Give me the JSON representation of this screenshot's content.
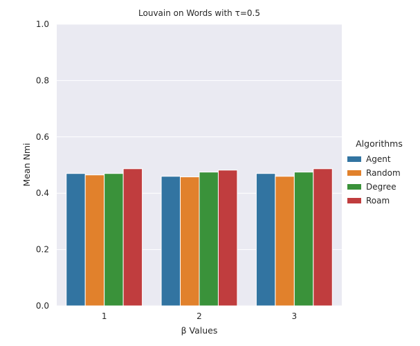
{
  "chart_data": {
    "type": "bar",
    "title": "Louvain on Words with τ=0.5",
    "xlabel": "β Values",
    "ylabel": "Mean Nmi",
    "categories": [
      "1",
      "2",
      "3"
    ],
    "ylim": [
      0,
      1
    ],
    "yticks": [
      "0.0",
      "0.2",
      "0.4",
      "0.6",
      "0.8",
      "1.0"
    ],
    "grid": true,
    "legend_title": "Algorithms",
    "legend_position": "right",
    "series": [
      {
        "name": "Agent",
        "color": "#3274a1",
        "values": [
          0.47,
          0.46,
          0.47
        ]
      },
      {
        "name": "Random",
        "color": "#e1812c",
        "values": [
          0.465,
          0.458,
          0.46
        ]
      },
      {
        "name": "Degree",
        "color": "#3a923a",
        "values": [
          0.47,
          0.475,
          0.475
        ]
      },
      {
        "name": "Roam",
        "color": "#c03d3e",
        "values": [
          0.487,
          0.482,
          0.487
        ]
      }
    ]
  }
}
